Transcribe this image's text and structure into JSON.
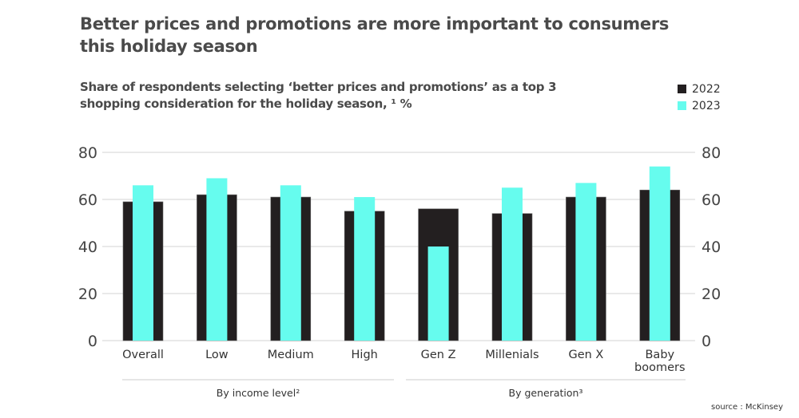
{
  "title": "Better prices and promotions are more important to consumers this holiday season",
  "source": "source : McKinsey",
  "chart_data": {
    "type": "bar",
    "title": "Share of respondents selecting ‘better prices and promotions’ as a top 3 shopping consideration for the holiday season, ¹ %",
    "categories": [
      "Overall",
      "Low",
      "Medium",
      "High",
      "Gen Z",
      "Millenials",
      "Gen X",
      "Baby boomers"
    ],
    "groups": [
      {
        "label": "By income level²",
        "categories": [
          "Low",
          "Medium",
          "High"
        ]
      },
      {
        "label": "By generation³",
        "categories": [
          "Gen Z",
          "Millenials",
          "Gen X",
          "Baby boomers"
        ]
      }
    ],
    "series": [
      {
        "name": "2022",
        "color": "#231f20",
        "values": [
          59,
          62,
          61,
          55,
          56,
          54,
          61,
          64
        ]
      },
      {
        "name": "2023",
        "color": "#66fcee",
        "values": [
          66,
          69,
          66,
          61,
          40,
          65,
          67,
          74
        ]
      }
    ],
    "ylim": [
      0,
      80
    ],
    "yticks": [
      0,
      20,
      40,
      60,
      80
    ],
    "y_axis_both_sides": true,
    "grid": true,
    "legend": "top-right"
  }
}
